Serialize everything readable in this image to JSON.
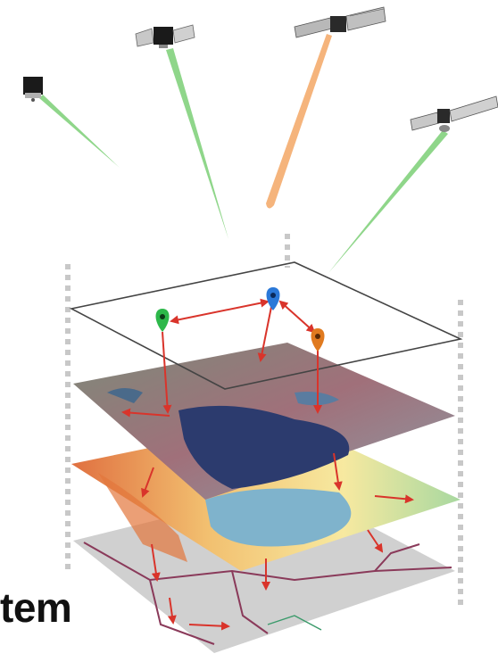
{
  "caption": {
    "text": "tem"
  },
  "satellites": [
    {
      "name": "cubesat",
      "icon": "satellite-icon",
      "beam_color": "#8fd68a"
    },
    {
      "name": "small-satellite",
      "icon": "satellite-icon",
      "beam_color": "#8fd68a"
    },
    {
      "name": "large-solar-satellite",
      "icon": "satellite-icon",
      "beam_color": "#f5b47c"
    },
    {
      "name": "dish-satellite",
      "icon": "satellite-icon",
      "beam_color": "#8fd68a"
    }
  ],
  "layers": [
    {
      "name": "observation-points-layer",
      "fill": "none"
    },
    {
      "name": "satellite-imagery-layer",
      "fill": "#8a8a9a"
    },
    {
      "name": "elevation-layer",
      "fill": "#e8b070"
    },
    {
      "name": "basemap-roads-layer",
      "fill": "#d0d0d0"
    }
  ],
  "markers": [
    {
      "name": "green-pin",
      "color": "#2db84a"
    },
    {
      "name": "blue-pin",
      "color": "#2a78d8"
    },
    {
      "name": "orange-pin",
      "color": "#e07a1f"
    }
  ],
  "colors": {
    "link_arrow": "#d9342b",
    "frame_dash": "#c8c8c8",
    "water": "#2c3b6e"
  }
}
